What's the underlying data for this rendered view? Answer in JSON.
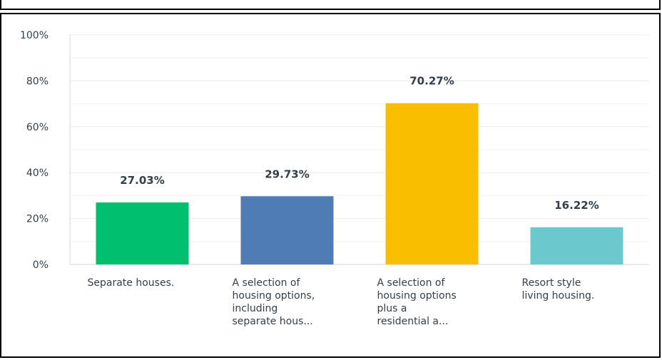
{
  "chart_data": {
    "type": "bar",
    "categories": [
      [
        "Separate houses."
      ],
      [
        "A selection of",
        "housing options,",
        "including",
        "separate hous..."
      ],
      [
        "A selection of",
        "housing options",
        "plus a",
        "residential a..."
      ],
      [
        "Resort style",
        "living housing."
      ]
    ],
    "values": [
      27.03,
      29.73,
      70.27,
      16.22
    ],
    "value_labels": [
      "27.03%",
      "29.73%",
      "70.27%",
      "16.22%"
    ],
    "colors": [
      "#00bf6f",
      "#507cb6",
      "#f9be00",
      "#6bc8cd"
    ],
    "yticks": [
      "0%",
      "20%",
      "40%",
      "60%",
      "80%",
      "100%"
    ],
    "ylim": [
      0,
      100
    ],
    "grid": true,
    "title": "",
    "xlabel": "",
    "ylabel": ""
  }
}
